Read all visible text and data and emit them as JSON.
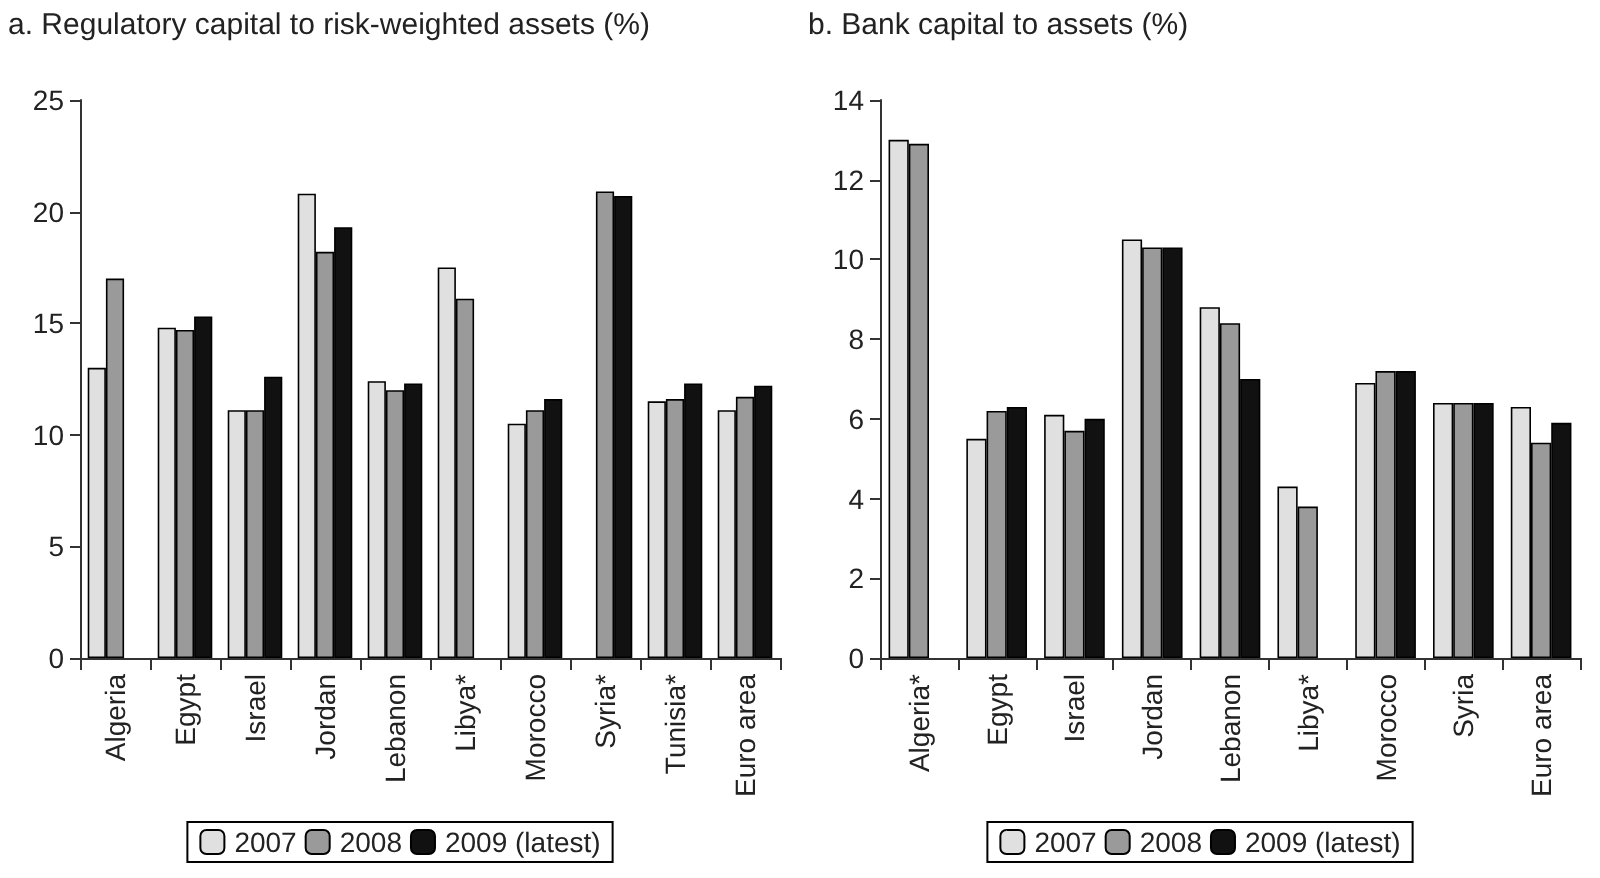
{
  "chart_data": [
    {
      "type": "bar",
      "title": "a. Regulatory capital to risk-weighted assets (%)",
      "categories": [
        "Algeria",
        "Egypt",
        "Israel",
        "Jordan",
        "Lebanon",
        "Libya*",
        "Morocco",
        "Syria*",
        "Tunisia*",
        "Euro area"
      ],
      "series": [
        {
          "name": "2007",
          "color": "#e0e0e0",
          "values": [
            13.0,
            14.8,
            11.1,
            20.8,
            12.4,
            17.5,
            10.5,
            null,
            11.5,
            11.1
          ]
        },
        {
          "name": "2008",
          "color": "#9a9a9a",
          "values": [
            17.0,
            14.7,
            11.1,
            18.2,
            12.0,
            16.1,
            11.1,
            20.9,
            11.6,
            11.7
          ]
        },
        {
          "name": "2009 (latest)",
          "color": "#111111",
          "values": [
            null,
            15.3,
            12.6,
            19.3,
            12.3,
            null,
            11.6,
            20.7,
            12.3,
            12.2
          ]
        }
      ],
      "ylim": [
        0,
        25
      ],
      "yticks": [
        0,
        5,
        10,
        15,
        20,
        25
      ],
      "grid": false,
      "legend": "bottom"
    },
    {
      "type": "bar",
      "title": "b. Bank capital to assets (%)",
      "categories": [
        "Algeria*",
        "Egypt",
        "Israel",
        "Jordan",
        "Lebanon",
        "Libya*",
        "Morocco",
        "Syria",
        "Euro area"
      ],
      "series": [
        {
          "name": "2007",
          "color": "#e0e0e0",
          "values": [
            13.0,
            5.5,
            6.1,
            10.5,
            8.8,
            4.3,
            6.9,
            6.4,
            6.3
          ]
        },
        {
          "name": "2008",
          "color": "#9a9a9a",
          "values": [
            12.9,
            6.2,
            5.7,
            10.3,
            8.4,
            3.8,
            7.2,
            6.4,
            5.4
          ]
        },
        {
          "name": "2009 (latest)",
          "color": "#111111",
          "values": [
            null,
            6.3,
            6.0,
            10.3,
            7.0,
            null,
            7.2,
            6.4,
            5.9
          ]
        }
      ],
      "ylim": [
        0,
        14
      ],
      "yticks": [
        0,
        2,
        4,
        6,
        8,
        10,
        12,
        14
      ],
      "grid": false,
      "legend": "bottom"
    }
  ]
}
